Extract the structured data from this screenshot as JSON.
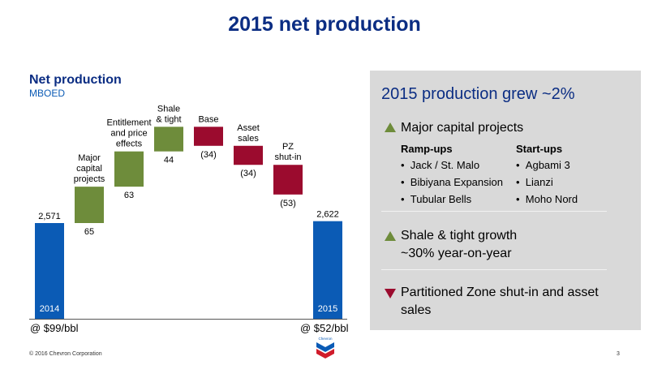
{
  "slide": {
    "title": "2015 net production",
    "copyright": "© 2016 Chevron Corporation",
    "page_number": "3",
    "logo_text": "Chevron"
  },
  "chart": {
    "title": "Net production",
    "unit": "MBOED",
    "price_left": "@ $99/bbl",
    "price_right": "@ $52/bbl"
  },
  "chart_data": {
    "type": "bar",
    "subtype": "waterfall",
    "title": "Net production",
    "ylabel": "MBOED",
    "categories": [
      "2014",
      "Major capital projects",
      "Entitlement and price effects",
      "Shale & tight",
      "Base",
      "Asset sales",
      "PZ shut-in",
      "2015"
    ],
    "category_lines": [
      [
        "2014"
      ],
      [
        "Major",
        "capital",
        "projects"
      ],
      [
        "Entitlement",
        "and price",
        "effects"
      ],
      [
        "Shale",
        "& tight"
      ],
      [
        "Base"
      ],
      [
        "Asset",
        "sales"
      ],
      [
        "PZ",
        "shut-in"
      ],
      [
        "2015"
      ]
    ],
    "values": [
      2571,
      65,
      63,
      44,
      -34,
      -34,
      -53,
      2622
    ],
    "labels": [
      "2,571",
      "65",
      "63",
      "44",
      "(34)",
      "(34)",
      "(53)",
      "2,622"
    ],
    "bar_kinds": [
      "total",
      "increase",
      "increase",
      "increase",
      "decrease",
      "decrease",
      "decrease",
      "total"
    ],
    "colors": {
      "total": "#0b5bb5",
      "increase": "#6e8c3b",
      "decrease": "#9b0b2e"
    }
  },
  "panel": {
    "title": "2015 production grew ~2%",
    "section1": {
      "heading": "Major capital projects",
      "col1_title": "Ramp-ups",
      "col1_items": [
        "Jack / St. Malo",
        "Bibiyana Expansion",
        "Tubular Bells"
      ],
      "col2_title": "Start-ups",
      "col2_items": [
        "Agbami 3",
        "Lianzi",
        "Moho Nord"
      ]
    },
    "section2": {
      "line1": "Shale & tight growth",
      "line2": "~30% year-on-year"
    },
    "section3": {
      "line1": "Partitioned Zone shut-in and asset",
      "line2": "sales"
    },
    "bullet": "•"
  },
  "colors": {
    "title_blue": "#0b2d83",
    "panel_bg": "#d9d9d9",
    "up": "#6e8c3b",
    "down": "#9b0b2e",
    "bar_blue": "#0b5bb5"
  }
}
